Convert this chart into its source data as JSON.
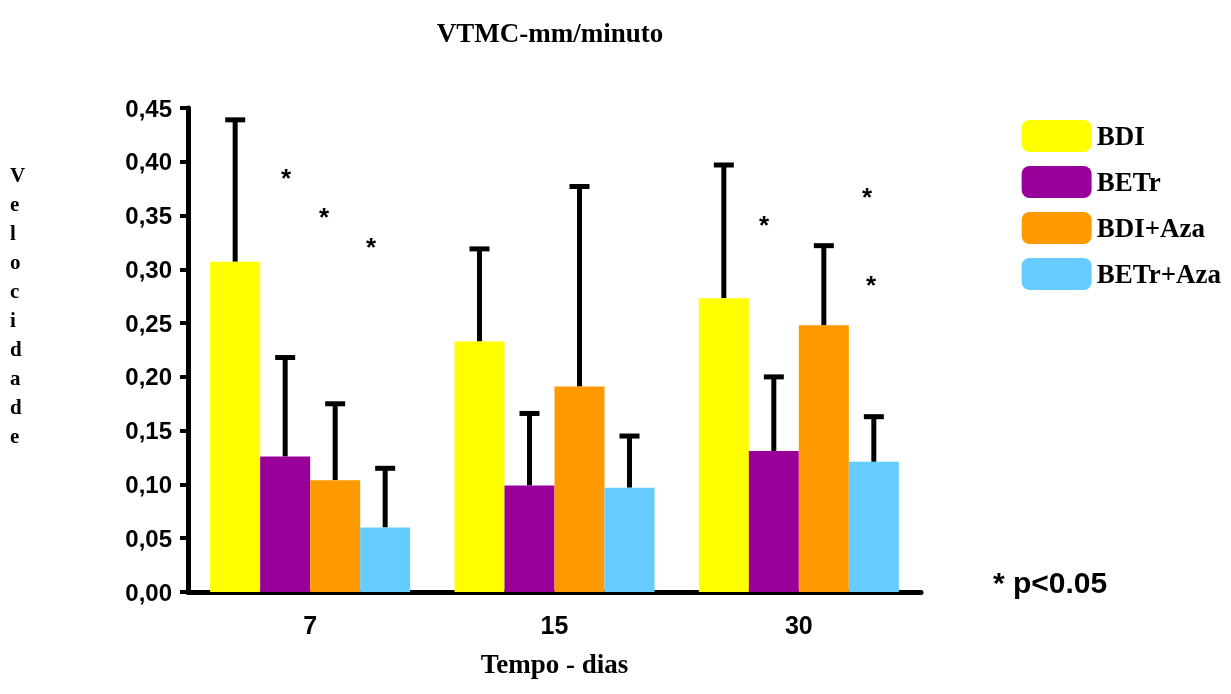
{
  "chart_data": {
    "type": "bar",
    "title": "VTMC-mm/minuto",
    "xlabel": "Tempo - dias",
    "ylabel": "Velocidade",
    "categories": [
      "7",
      "15",
      "30"
    ],
    "series": [
      {
        "name": "BDI",
        "color": "#ffff00",
        "values": [
          0.307,
          0.233,
          0.273
        ],
        "errors": [
          [
            0.307,
            0.439
          ],
          [
            0.233,
            0.319
          ],
          [
            0.273,
            0.397
          ]
        ]
      },
      {
        "name": "BETr",
        "color": "#990099",
        "values": [
          0.126,
          0.099,
          0.131
        ],
        "errors": [
          [
            0.126,
            0.218
          ],
          [
            0.099,
            0.166
          ],
          [
            0.131,
            0.2
          ]
        ]
      },
      {
        "name": "BDI+Aza",
        "color": "#ff9900",
        "values": [
          0.104,
          0.191,
          0.248
        ],
        "errors": [
          [
            0.104,
            0.175
          ],
          [
            0.191,
            0.377
          ],
          [
            0.248,
            0.322
          ]
        ]
      },
      {
        "name": "BETr+Aza",
        "color": "#66ccff",
        "values": [
          0.06,
          0.097,
          0.121
        ],
        "errors": [
          [
            0.06,
            0.115
          ],
          [
            0.097,
            0.145
          ],
          [
            0.121,
            0.163
          ]
        ]
      }
    ],
    "ylim": [
      0,
      0.45
    ],
    "yticks": [
      {
        "value": 0,
        "label": "0,00"
      },
      {
        "value": 0.05,
        "label": "0,05"
      },
      {
        "value": 0.1,
        "label": "0,10"
      },
      {
        "value": 0.15,
        "label": "0,15"
      },
      {
        "value": 0.2,
        "label": "0,20"
      },
      {
        "value": 0.25,
        "label": "0,25"
      },
      {
        "value": 0.3,
        "label": "0,30"
      },
      {
        "value": 0.35,
        "label": "0,35"
      },
      {
        "value": 0.4,
        "label": "0,40"
      },
      {
        "value": 0.45,
        "label": "0,45"
      }
    ],
    "annotations": [
      "*",
      "*",
      "*",
      "*",
      "*",
      "*",
      "* p<0.05"
    ],
    "legend": "right",
    "grid": false
  }
}
